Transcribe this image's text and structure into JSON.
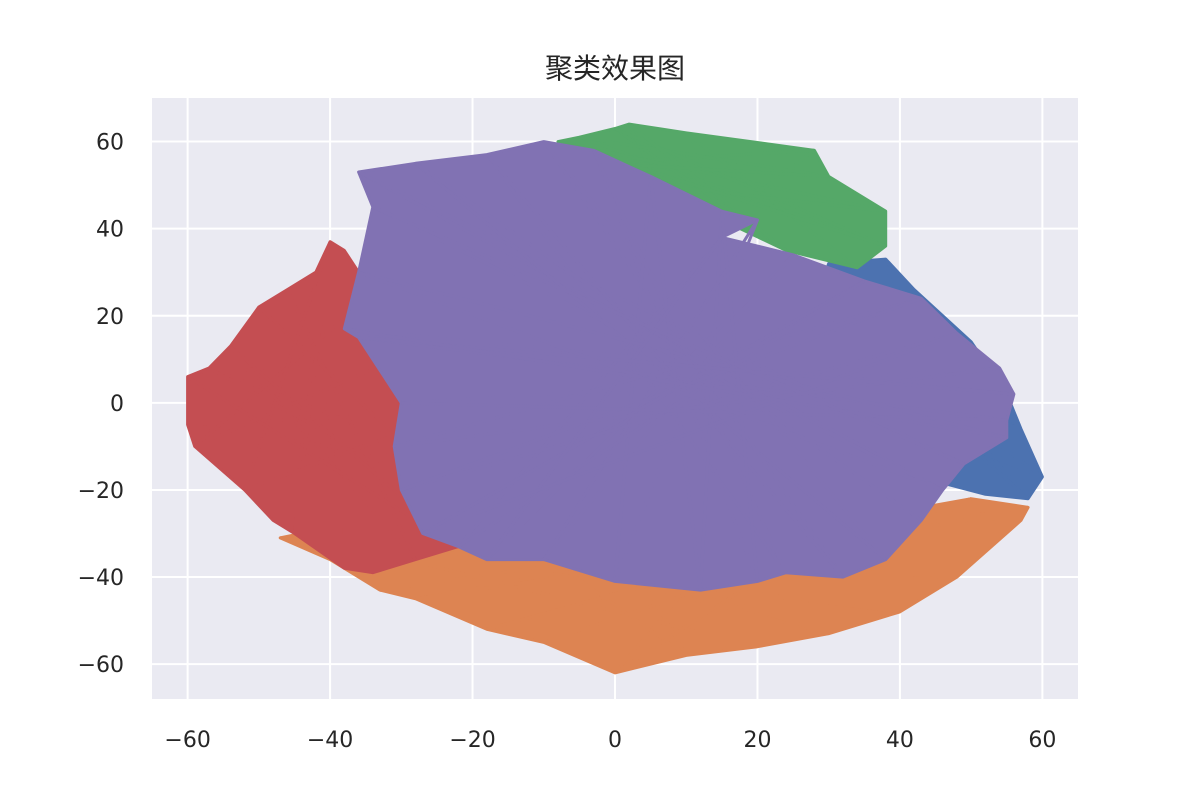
{
  "chart_data": {
    "type": "line",
    "title": "聚类效果图",
    "xlabel": "",
    "ylabel": "",
    "xlim": [
      -65,
      65
    ],
    "ylim": [
      -68,
      70
    ],
    "grid": true,
    "x_ticks": [
      -60,
      -40,
      -20,
      0,
      20,
      40,
      60
    ],
    "x_tick_labels": [
      "−60",
      "−40",
      "−20",
      "0",
      "20",
      "40",
      "60"
    ],
    "y_ticks": [
      60,
      40,
      20,
      0,
      -20,
      -40,
      -60
    ],
    "y_tick_labels": [
      "60",
      "40",
      "20",
      "0",
      "−20",
      "−40",
      "−60"
    ],
    "colors": {
      "plot_background": "#eaeaf2",
      "grid": "#ffffff"
    },
    "series": [
      {
        "color": "#4c72b0",
        "points": [
          [
            30,
            32
          ],
          [
            38,
            33
          ],
          [
            42,
            26
          ],
          [
            50,
            14
          ],
          [
            55,
            2
          ],
          [
            57,
            -6
          ],
          [
            60,
            -17
          ],
          [
            58,
            -22
          ],
          [
            52,
            -21
          ],
          [
            45,
            -18
          ],
          [
            38,
            -12
          ],
          [
            34,
            0
          ],
          [
            30,
            10
          ],
          [
            28,
            22
          ]
        ]
      },
      {
        "color": "#dd8452",
        "points": [
          [
            -47,
            -31
          ],
          [
            -40,
            -36
          ],
          [
            -33,
            -43
          ],
          [
            -28,
            -45
          ],
          [
            -18,
            -52
          ],
          [
            -10,
            -55
          ],
          [
            0,
            -62
          ],
          [
            10,
            -58
          ],
          [
            20,
            -56
          ],
          [
            30,
            -53
          ],
          [
            40,
            -48
          ],
          [
            48,
            -40
          ],
          [
            57,
            -27
          ],
          [
            58,
            -24
          ],
          [
            50,
            -22
          ],
          [
            40,
            -26
          ],
          [
            30,
            -30
          ],
          [
            15,
            -33
          ],
          [
            0,
            -30
          ],
          [
            -15,
            -29
          ],
          [
            -30,
            -28
          ],
          [
            -44,
            -30
          ]
        ]
      },
      {
        "color": "#55a868",
        "points": [
          [
            -5,
            61
          ],
          [
            0,
            63
          ],
          [
            2,
            64
          ],
          [
            10,
            62
          ],
          [
            28,
            58
          ],
          [
            30,
            52
          ],
          [
            38,
            44
          ],
          [
            38,
            36
          ],
          [
            34,
            31
          ],
          [
            24,
            35
          ],
          [
            15,
            42
          ],
          [
            6,
            50
          ],
          [
            -2,
            55
          ],
          [
            -8,
            60
          ]
        ]
      },
      {
        "color": "#c44e52",
        "points": [
          [
            -42,
            30
          ],
          [
            -46,
            26
          ],
          [
            -50,
            22
          ],
          [
            -54,
            13
          ],
          [
            -57,
            8
          ],
          [
            -60,
            6
          ],
          [
            -60,
            -5
          ],
          [
            -59,
            -10
          ],
          [
            -52,
            -20
          ],
          [
            -48,
            -27
          ],
          [
            -45,
            -30
          ],
          [
            -38,
            -38
          ],
          [
            -34,
            -39
          ],
          [
            -28,
            -36
          ],
          [
            -22,
            -33
          ],
          [
            -18,
            -27
          ],
          [
            -20,
            -15
          ],
          [
            -22,
            -2
          ],
          [
            -28,
            12
          ],
          [
            -34,
            25
          ],
          [
            -38,
            35
          ],
          [
            -40,
            37
          ]
        ]
      },
      {
        "color": "#8172b3",
        "points": [
          [
            -36,
            53
          ],
          [
            -28,
            55
          ],
          [
            -18,
            57
          ],
          [
            -10,
            60
          ],
          [
            -3,
            58
          ],
          [
            5,
            52
          ],
          [
            15,
            44
          ],
          [
            20,
            42
          ],
          [
            15,
            38
          ],
          [
            25,
            34
          ],
          [
            35,
            28
          ],
          [
            43,
            24
          ],
          [
            48,
            16
          ],
          [
            54,
            8
          ],
          [
            56,
            2
          ],
          [
            55,
            -4
          ],
          [
            55,
            -8
          ],
          [
            49,
            -14
          ],
          [
            46,
            -20
          ],
          [
            43,
            -27
          ],
          [
            38,
            -36
          ],
          [
            32,
            -40
          ],
          [
            24,
            -39
          ],
          [
            20,
            -41
          ],
          [
            12,
            -43
          ],
          [
            0,
            -41
          ],
          [
            -10,
            -36
          ],
          [
            -18,
            -36
          ],
          [
            -22,
            -33
          ],
          [
            -27,
            -30
          ],
          [
            -30,
            -20
          ],
          [
            -31,
            -10
          ],
          [
            -30,
            0
          ],
          [
            -36,
            15
          ],
          [
            -38,
            17
          ],
          [
            -36,
            30
          ],
          [
            -34,
            45
          ]
        ]
      }
    ]
  }
}
